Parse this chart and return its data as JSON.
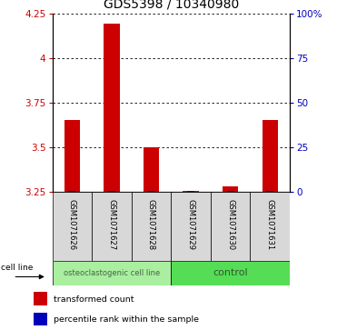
{
  "title": "GDS5398 / 10340980",
  "samples": [
    "GSM1071626",
    "GSM1071627",
    "GSM1071628",
    "GSM1071629",
    "GSM1071630",
    "GSM1071631"
  ],
  "transformed_counts": [
    3.65,
    4.19,
    3.5,
    3.255,
    3.28,
    3.65
  ],
  "percentile_ranks_pct": [
    5,
    5,
    5,
    2,
    5,
    5
  ],
  "baseline": 3.25,
  "ylim_min": 3.25,
  "ylim_max": 4.25,
  "yticks_left": [
    3.25,
    3.5,
    3.75,
    4.0,
    4.25
  ],
  "yticks_left_labels": [
    "3.25",
    "3.5",
    "3.75",
    "4",
    "4.25"
  ],
  "yticks_right_vals": [
    0,
    25,
    50,
    75,
    100
  ],
  "yticks_right_pos": [
    3.25,
    3.5,
    3.75,
    4.0,
    4.25
  ],
  "yticks_right_labels": [
    "0",
    "25",
    "50",
    "75",
    "100%"
  ],
  "bar_color_red": "#cc0000",
  "bar_color_blue": "#0000bb",
  "group1_label": "osteoclastogenic cell line",
  "group2_label": "control",
  "cell_line_label": "cell line",
  "legend_red": "transformed count",
  "legend_blue": "percentile rank within the sample",
  "group1_color": "#aaeea0",
  "group2_color": "#55dd55",
  "header_bg": "#d8d8d8",
  "title_fontsize": 10,
  "tick_fontsize": 7.5,
  "bar_width": 0.4,
  "blue_bar_width": 0.18
}
